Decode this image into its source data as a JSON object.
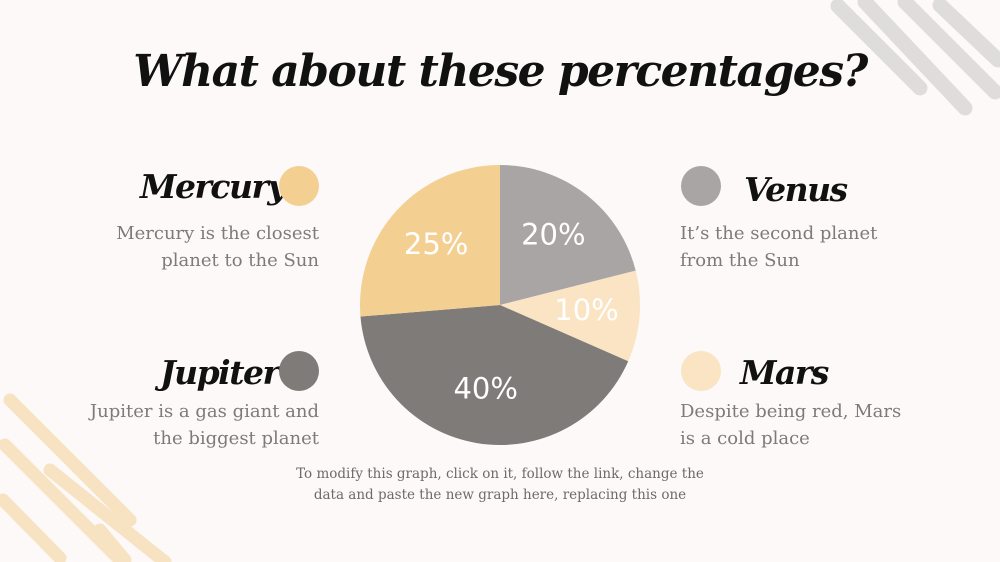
{
  "title": "What about these percentages?",
  "planets": [
    {
      "name": "Mercury",
      "desc_line1": "Mercury is the closest",
      "desc_line2": "planet to the Sun",
      "color": "#f4cf92"
    },
    {
      "name": "Venus",
      "desc_line1": "It’s the second planet",
      "desc_line2": "from the Sun",
      "color": "#a8a5a4"
    },
    {
      "name": "Jupiter",
      "desc_line1": "Jupiter is a gas giant and",
      "desc_line2": "the biggest planet",
      "color": "#7e7b79"
    },
    {
      "name": "Mars",
      "desc_line1": "Despite being red, Mars",
      "desc_line2": "is a cold place",
      "color": "#fae4c4"
    }
  ],
  "note": {
    "line1": "To modify this graph, click on it, follow the link, change the",
    "line2": "data and paste the new graph here, replacing this one"
  },
  "chart_data": {
    "type": "pie",
    "categories": [
      "Venus",
      "Mars",
      "Jupiter",
      "Mercury"
    ],
    "values": [
      20,
      10,
      40,
      25
    ],
    "labels": [
      "20%",
      "10%",
      "40%",
      "25%"
    ],
    "colors": [
      "#a8a5a4",
      "#fae4c4",
      "#7e7b79",
      "#f4cf92"
    ]
  }
}
